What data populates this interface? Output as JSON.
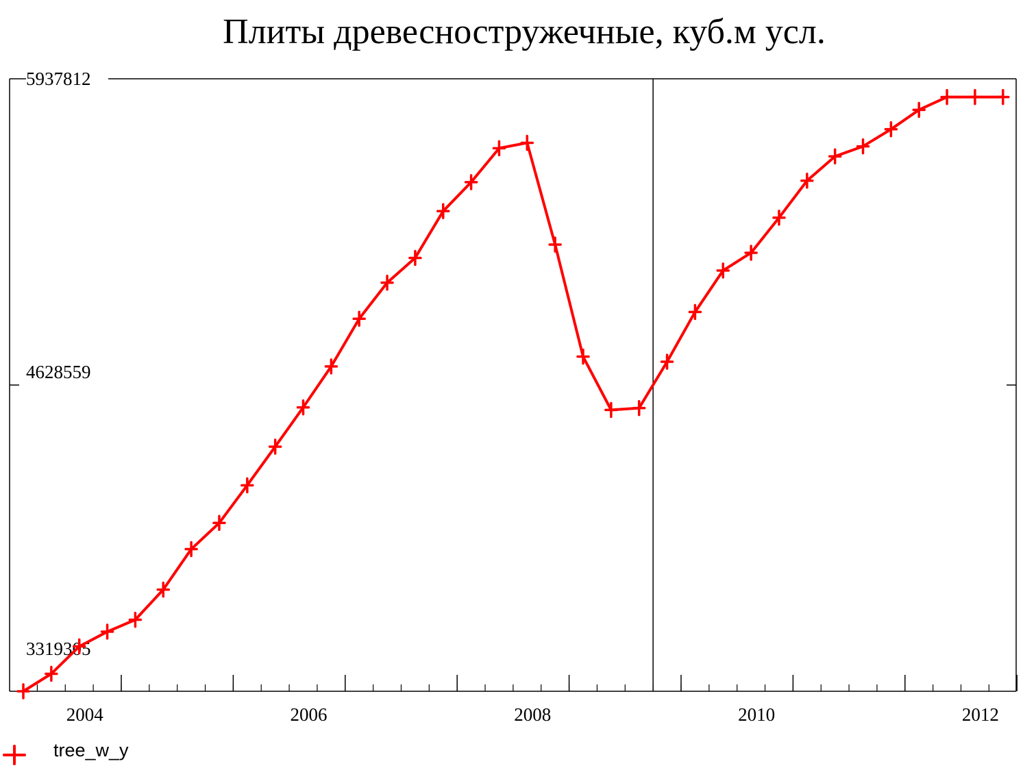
{
  "chart_data": {
    "type": "line",
    "title": "Плиты древесностружечные, куб.м усл.",
    "xlabel": "",
    "ylabel": "",
    "ylim": [
      3319305,
      5937812
    ],
    "y_ticks": [
      {
        "value": 5937812,
        "label": "5937812"
      },
      {
        "value": 4628559,
        "label": "4628559"
      },
      {
        "value": 3319305,
        "label": "3319305"
      }
    ],
    "x_ticks": [
      "2004",
      "2006",
      "2008",
      "2010",
      "2012"
    ],
    "x_period": "quarterly",
    "x_start": "2003-Q4",
    "reference_line_x": "2009-Q3",
    "grid": false,
    "legend": {
      "position": "bottom-left"
    },
    "series": [
      {
        "name": "tree_w_y",
        "color": "#ff0000",
        "marker": "plus",
        "x": [
          "2003-Q4",
          "2004-Q1",
          "2004-Q2",
          "2004-Q3",
          "2004-Q4",
          "2005-Q1",
          "2005-Q2",
          "2005-Q3",
          "2005-Q4",
          "2006-Q1",
          "2006-Q2",
          "2006-Q3",
          "2006-Q4",
          "2007-Q1",
          "2007-Q2",
          "2007-Q3",
          "2007-Q4",
          "2008-Q1",
          "2008-Q2",
          "2008-Q3",
          "2008-Q4",
          "2009-Q1",
          "2009-Q2",
          "2009-Q3",
          "2009-Q4",
          "2010-Q1",
          "2010-Q2",
          "2010-Q3",
          "2010-Q4",
          "2011-Q1",
          "2011-Q2",
          "2011-Q3",
          "2011-Q4",
          "2012-Q1",
          "2012-Q2",
          "2012-Q3"
        ],
        "values": [
          3319305,
          3394000,
          3511000,
          3574000,
          3625000,
          3754000,
          3927000,
          4039000,
          4200000,
          4365000,
          4533000,
          4708000,
          4912000,
          5066000,
          5172000,
          5372000,
          5496000,
          5641000,
          5664000,
          5229000,
          4750000,
          4522000,
          4530000,
          4728000,
          4941000,
          5118000,
          5194000,
          5344000,
          5502000,
          5606000,
          5649000,
          5722000,
          5805000,
          5860000,
          5860000,
          5860000
        ]
      }
    ]
  }
}
